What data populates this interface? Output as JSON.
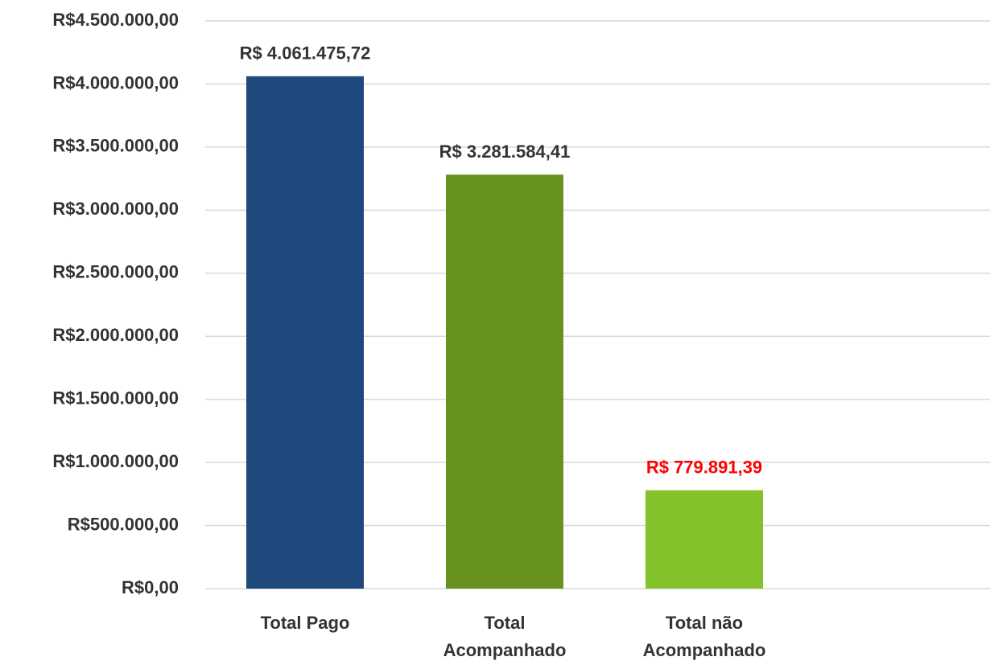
{
  "chart_data": {
    "type": "bar",
    "categories": [
      "Total Pago",
      "Total Acompanhado",
      "Total não Acompanhado"
    ],
    "values": [
      4061475.72,
      3281584.41,
      779891.39
    ],
    "value_labels": [
      "R$ 4.061.475,72",
      "R$ 3.281.584,41",
      "R$ 779.891,39"
    ],
    "colors": [
      "#1f497d",
      "#67921f",
      "#83c22a"
    ],
    "value_label_colors": [
      "#333333",
      "#333333",
      "#ff0000"
    ],
    "ylim": [
      0,
      4500000
    ],
    "yticks": [
      {
        "value": 0,
        "label": "R$0,00"
      },
      {
        "value": 500000,
        "label": "R$500.000,00"
      },
      {
        "value": 1000000,
        "label": "R$1.000.000,00"
      },
      {
        "value": 1500000,
        "label": "R$1.500.000,00"
      },
      {
        "value": 2000000,
        "label": "R$2.000.000,00"
      },
      {
        "value": 2500000,
        "label": "R$2.500.000,00"
      },
      {
        "value": 3000000,
        "label": "R$3.000.000,00"
      },
      {
        "value": 3500000,
        "label": "R$3.500.000,00"
      },
      {
        "value": 4000000,
        "label": "R$4.000.000,00"
      },
      {
        "value": 4500000,
        "label": "R$4.500.000,00"
      }
    ],
    "grid": true
  }
}
